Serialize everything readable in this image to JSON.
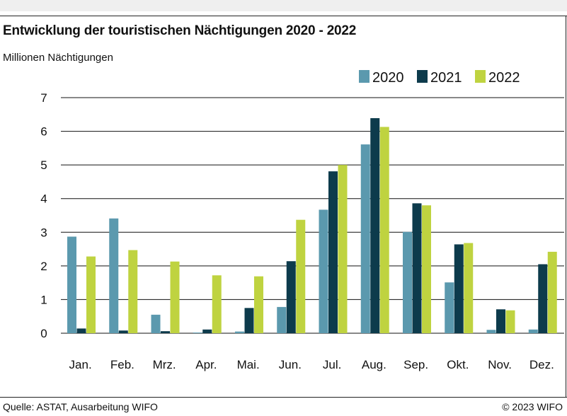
{
  "header": {
    "title": "Entwicklung der touristischen Nächtigungen 2020 - 2022",
    "subtitle": "Millionen Nächtigungen"
  },
  "footer": {
    "source": "Quelle: ASTAT, Ausarbeitung WIFO",
    "copyright": "© 2023 WIFO"
  },
  "chart_data": {
    "type": "bar",
    "title": "Entwicklung der touristischen Nächtigungen 2020 - 2022",
    "ylabel": "Millionen Nächtigungen",
    "xlabel": "",
    "ylim": [
      0,
      7
    ],
    "yticks": [
      0,
      1,
      2,
      3,
      4,
      5,
      6,
      7
    ],
    "grid": true,
    "legend_position": "top-right",
    "categories": [
      "Jan.",
      "Feb.",
      "Mrz.",
      "Apr.",
      "Mai.",
      "Jun.",
      "Jul.",
      "Aug.",
      "Sep.",
      "Okt.",
      "Nov.",
      "Dez."
    ],
    "series": [
      {
        "name": "2020",
        "color": "#5b99ae",
        "values": [
          2.87,
          3.41,
          0.55,
          0.02,
          0.05,
          0.78,
          3.67,
          5.61,
          3.01,
          1.51,
          0.1,
          0.11
        ]
      },
      {
        "name": "2021",
        "color": "#0d3b4c",
        "values": [
          0.14,
          0.08,
          0.06,
          0.11,
          0.75,
          2.14,
          4.81,
          6.39,
          3.86,
          2.64,
          0.71,
          2.05
        ]
      },
      {
        "name": "2022",
        "color": "#bfd340",
        "values": [
          2.28,
          2.47,
          2.13,
          1.72,
          1.69,
          3.37,
          5.0,
          6.13,
          3.8,
          2.68,
          0.68,
          2.42
        ]
      }
    ]
  }
}
